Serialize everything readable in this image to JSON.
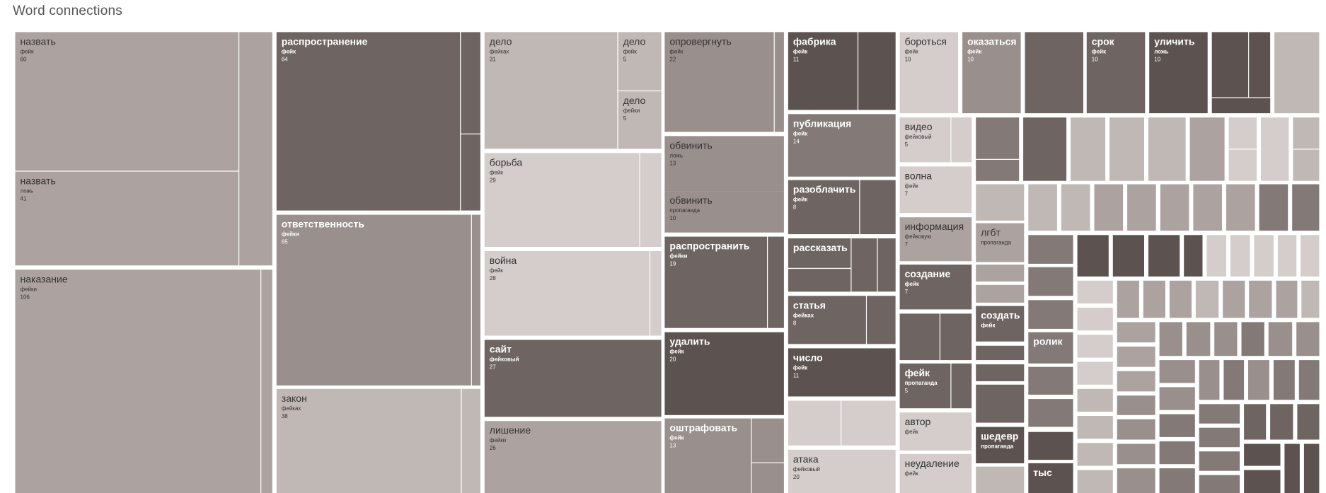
{
  "page": {
    "title": "Word connections"
  },
  "chart_data": {
    "type": "treemap",
    "title": "Word connections",
    "colors": {
      "lightest": "#d4cdcb",
      "light": "#c0b8b5",
      "mid_light": "#aca3a0",
      "mid": "#998f8c",
      "mid_dark": "#837a77",
      "dark": "#6e6562",
      "darkest": "#5c5350",
      "background": "#ffffff",
      "title_text": "#555555"
    },
    "labeled_cells": [
      {
        "word": "назвать",
        "connection": "фейк",
        "count": "60"
      },
      {
        "word": "назвать",
        "connection": "ложь",
        "count": "41"
      },
      {
        "word": "наказание",
        "connection": "фейки",
        "count": "106"
      },
      {
        "word": "распространение",
        "connection": "фейк",
        "count": "64"
      },
      {
        "word": "ответственность",
        "connection": "фейки",
        "count": "65"
      },
      {
        "word": "закон",
        "connection": "фейках",
        "count": "38"
      },
      {
        "word": "дело",
        "connection": "фейках",
        "count": "31"
      },
      {
        "word": "дело",
        "connection": "фейк",
        "count": "5"
      },
      {
        "word": "дело",
        "connection": "фейки",
        "count": "5"
      },
      {
        "word": "борьба",
        "connection": "фейк",
        "count": "29"
      },
      {
        "word": "война",
        "connection": "фейк",
        "count": "28"
      },
      {
        "word": "сайт",
        "connection": "фейковый",
        "count": "27"
      },
      {
        "word": "лишение",
        "connection": "фейки",
        "count": "26"
      },
      {
        "word": "опровергнуть",
        "connection": "фейк",
        "count": "22"
      },
      {
        "word": "обвинить",
        "connection": "ложь",
        "count": "13"
      },
      {
        "word": "обвинить",
        "connection": "пропаганда",
        "count": "10"
      },
      {
        "word": "распространить",
        "connection": "фейки",
        "count": "19"
      },
      {
        "word": "удалить",
        "connection": "фейк",
        "count": "20"
      },
      {
        "word": "оштрафовать",
        "connection": "фейк",
        "count": "13"
      },
      {
        "word": "фабрика",
        "connection": "фейк",
        "count": "11"
      },
      {
        "word": "публикация",
        "connection": "фейк",
        "count": "14"
      },
      {
        "word": "разоблачить",
        "connection": "фейк",
        "count": "8"
      },
      {
        "word": "рассказать",
        "connection": "",
        "count": ""
      },
      {
        "word": "статья",
        "connection": "фейках",
        "count": "8"
      },
      {
        "word": "число",
        "connection": "фейк",
        "count": "11"
      },
      {
        "word": "атака",
        "connection": "фейковый",
        "count": "20"
      },
      {
        "word": "бороться",
        "connection": "фейк",
        "count": "10"
      },
      {
        "word": "оказаться",
        "connection": "фейк",
        "count": "10"
      },
      {
        "word": "срок",
        "connection": "фейк",
        "count": "10"
      },
      {
        "word": "уличить",
        "connection": "ложь",
        "count": "10"
      },
      {
        "word": "видео",
        "connection": "фейковый",
        "count": "5"
      },
      {
        "word": "волна",
        "connection": "фейк",
        "count": "7"
      },
      {
        "word": "информация",
        "connection": "фейковую",
        "count": "7"
      },
      {
        "word": "создание",
        "connection": "фейк",
        "count": "7"
      },
      {
        "word": "фейк",
        "connection": "пропаганда",
        "count": "5"
      },
      {
        "word": "автор",
        "connection": "фейк",
        "count": ""
      },
      {
        "word": "неудаление",
        "connection": "фейк",
        "count": ""
      },
      {
        "word": "лгбт",
        "connection": "пропаганда",
        "count": ""
      },
      {
        "word": "создать",
        "connection": "фейк",
        "count": ""
      },
      {
        "word": "шедевр",
        "connection": "пропаганда",
        "count": ""
      },
      {
        "word": "ролик",
        "connection": "",
        "count": ""
      },
      {
        "word": "тыс",
        "connection": "",
        "count": ""
      }
    ]
  }
}
